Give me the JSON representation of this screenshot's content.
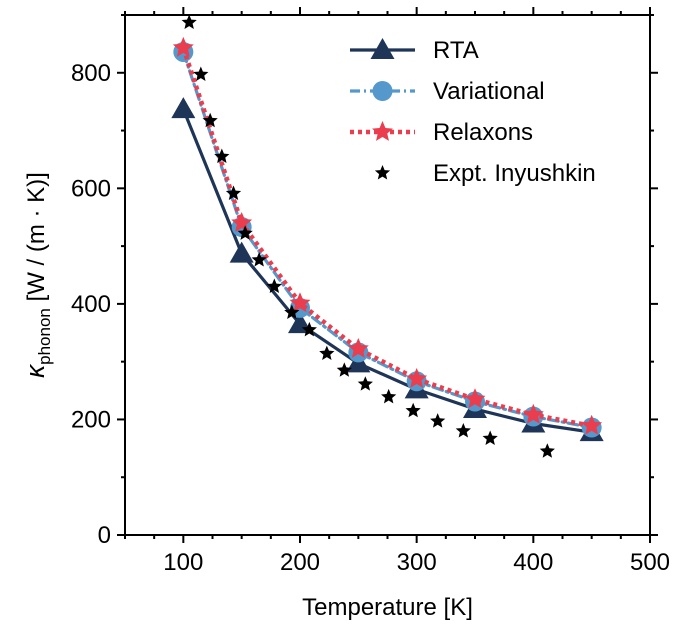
{
  "chart_data": {
    "type": "line",
    "title": "",
    "xlabel": "Temperature [K]",
    "ylabel": {
      "symbol": "κ",
      "subscript": "phonon",
      "unit": " [W / (m · K)]"
    },
    "xlim": [
      50,
      500
    ],
    "ylim": [
      0,
      900
    ],
    "xticks": [
      100,
      200,
      300,
      400,
      500
    ],
    "yticks": [
      0,
      200,
      400,
      600,
      800
    ],
    "grid": false,
    "legend_position": "top-right",
    "series": [
      {
        "name": "RTA",
        "marker": "triangle",
        "line": "solid",
        "color": "#1f3558",
        "x": [
          100,
          150,
          200,
          250,
          300,
          350,
          400,
          450
        ],
        "y": [
          737,
          487,
          365,
          297,
          252,
          218,
          193,
          178
        ]
      },
      {
        "name": "Variational",
        "marker": "circle",
        "line": "dashdot",
        "color": "#5599cc",
        "x": [
          100,
          150,
          200,
          250,
          300,
          350,
          400,
          450
        ],
        "y": [
          836,
          533,
          393,
          316,
          266,
          231,
          205,
          186
        ]
      },
      {
        "name": "Relaxons",
        "marker": "star",
        "line": "dotted",
        "color": "#ea3d4e",
        "x": [
          100,
          150,
          200,
          250,
          300,
          350,
          400,
          450
        ],
        "y": [
          843,
          540,
          401,
          322,
          270,
          235,
          208,
          189
        ]
      },
      {
        "name": "Expt. Inyushkin",
        "marker": "star",
        "line": "none",
        "color": "#000000",
        "x": [
          105,
          115,
          123,
          133,
          143,
          153,
          165,
          178,
          193,
          208,
          223,
          238,
          256,
          276,
          297,
          318,
          340,
          363,
          412
        ],
        "y": [
          887,
          797,
          717,
          655,
          591,
          522,
          476,
          430,
          385,
          355,
          314,
          285,
          261,
          239,
          215,
          197,
          180,
          167,
          145
        ]
      }
    ]
  }
}
